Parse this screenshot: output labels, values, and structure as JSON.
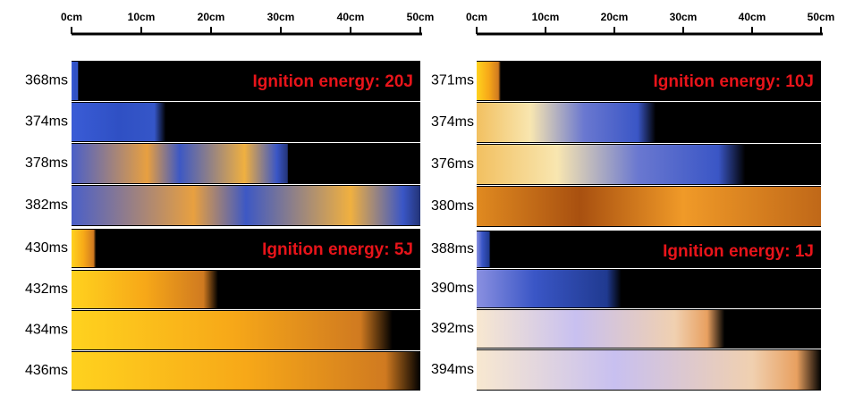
{
  "panels": [
    {
      "scale": [
        "0cm",
        "10cm",
        "20cm",
        "30cm",
        "40cm",
        "50cm"
      ],
      "groups": [
        {
          "energy_label": "Ignition energy: 20J",
          "times": [
            "368ms",
            "374ms",
            "378ms",
            "382ms"
          ]
        },
        {
          "energy_label": "Ignition energy: 5J",
          "times": [
            "430ms",
            "432ms",
            "434ms",
            "436ms"
          ]
        }
      ]
    },
    {
      "scale": [
        "0cm",
        "10cm",
        "20cm",
        "30cm",
        "40cm",
        "50cm"
      ],
      "groups": [
        {
          "energy_label": "Ignition energy: 10J",
          "times": [
            "371ms",
            "374ms",
            "376ms",
            "380ms"
          ]
        },
        {
          "energy_label": "Ignition energy: 1J",
          "times": [
            "388ms",
            "390ms",
            "392ms",
            "394ms"
          ]
        }
      ]
    }
  ]
}
